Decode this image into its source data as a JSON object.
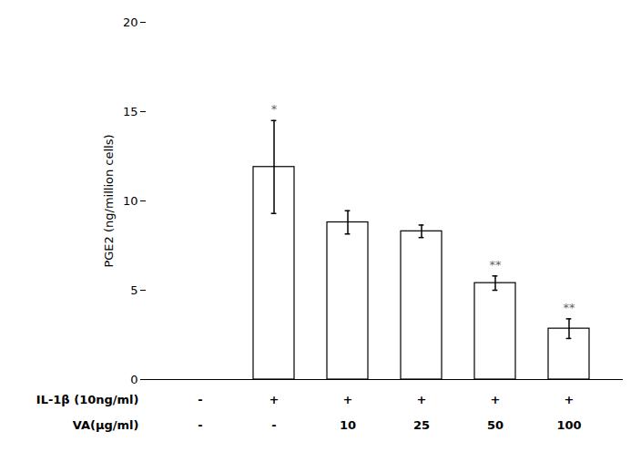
{
  "chart_data": {
    "type": "bar",
    "categories": [
      null,
      null,
      null,
      null,
      null,
      null
    ],
    "values": [
      0,
      11.9,
      8.8,
      8.3,
      5.4,
      2.85
    ],
    "errors": [
      0,
      2.6,
      0.65,
      0.35,
      0.4,
      0.55
    ],
    "significance": [
      null,
      "*",
      null,
      null,
      "**",
      "**"
    ],
    "label_rows": [
      {
        "label": "IL-1β (10ng/ml)",
        "values": [
          "-",
          "+",
          "+",
          "+",
          "+",
          "+"
        ]
      },
      {
        "label": "VA(μg/ml)",
        "values": [
          "-",
          "-",
          "10",
          "25",
          "50",
          "100"
        ]
      }
    ],
    "ylabel": "PGE2 (ng/million cells)",
    "ylim": [
      0,
      20
    ],
    "yticks": [
      0,
      5,
      10,
      15,
      20
    ],
    "grid": false,
    "tick_labels": "y"
  }
}
